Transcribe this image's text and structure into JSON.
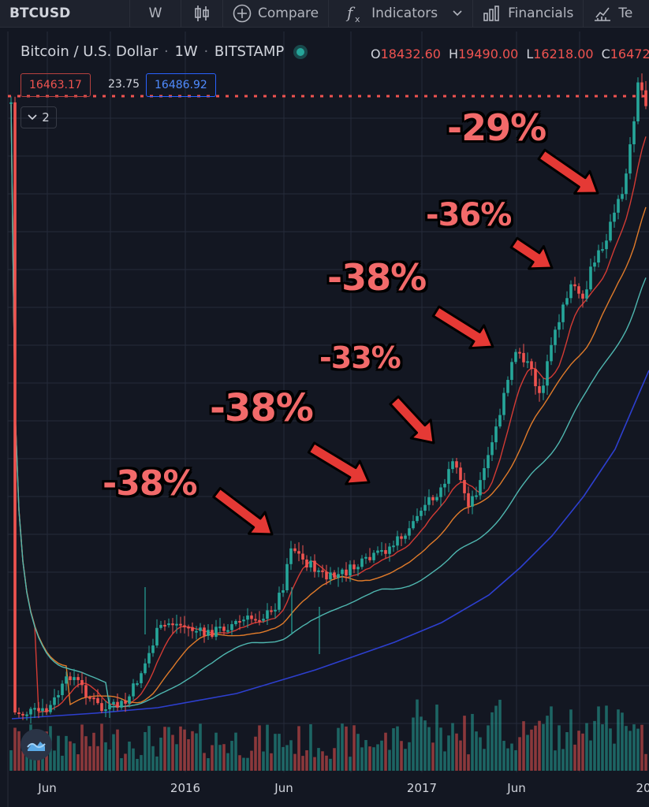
{
  "toolbar": {
    "symbol": "BTCUSD",
    "interval": "W",
    "compare": "Compare",
    "indicators": "Indicators",
    "financials": "Financials",
    "templates_partial": "Te"
  },
  "legend": {
    "title": "Bitcoin / U.S. Dollar",
    "interval": "1W",
    "exchange": "BITSTAMP",
    "o_label": "O",
    "o_value": "18432.60",
    "h_label": "H",
    "h_value": "19490.00",
    "l_label": "L",
    "l_value": "16218.00",
    "c_label": "C",
    "c_value": "16472."
  },
  "price_boxes": {
    "bid": "16463.17",
    "spread": "23.75",
    "ask": "16486.92"
  },
  "collapse_label": "2",
  "colors": {
    "up": "#26a69a",
    "down": "#ef5350",
    "bg": "#131722",
    "grid": "#262b3a",
    "ma_red": "#d33b34",
    "ma_orange": "#e07b2a",
    "ma_teal": "#4fb7b0",
    "ma_blue": "#2d3fcf",
    "annotation": "#f26a6a",
    "arrow": "#e53935"
  },
  "chart_data": {
    "type": "candlestick",
    "symbol": "BTCUSD",
    "interval": "1W",
    "y_scale": "log",
    "x_tick_labels": [
      "Jun",
      "2016",
      "Jun",
      "2017",
      "Jun",
      "20"
    ],
    "annotations": [
      "-38%",
      "-38%",
      "-33%",
      "-38%",
      "-36%",
      "-29%"
    ],
    "current_price_line": "16463.17",
    "moving_averages": 4,
    "volume_histogram": true
  }
}
